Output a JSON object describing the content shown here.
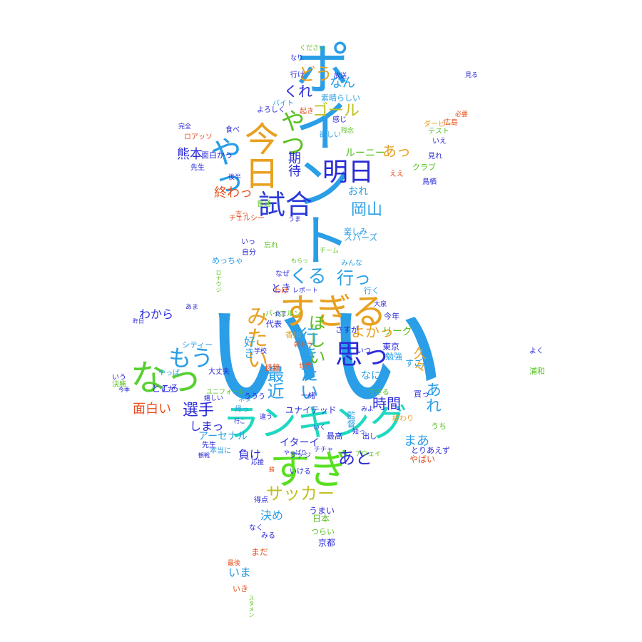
{
  "words": [
    {
      "text": "いい",
      "color": "#2a9ee6"
    },
    {
      "text": "ポイント",
      "color": "#2a9ee6"
    },
    {
      "text": "ランキング",
      "color": "#1fd8c0"
    },
    {
      "text": "すぎる",
      "color": "#e8a020"
    },
    {
      "text": "すぎ",
      "color": "#58e020"
    },
    {
      "text": "なっ",
      "color": "#58d030"
    },
    {
      "text": "今日",
      "color": "#e8a020"
    },
    {
      "text": "思っ",
      "color": "#2a2ad8"
    },
    {
      "text": "やっ",
      "color": "#2a9ee6"
    },
    {
      "text": "試合",
      "color": "#2a3ad8"
    },
    {
      "text": "明日",
      "color": "#2a2ad8"
    },
    {
      "text": "みたい",
      "color": "#e8a020"
    },
    {
      "text": "もう",
      "color": "#2a9ee6"
    },
    {
      "text": "やつ",
      "color": "#58c020"
    },
    {
      "text": "ゴール",
      "color": "#c0c020"
    },
    {
      "text": "行きたい",
      "color": "#2a9ee6"
    },
    {
      "text": "ほしい",
      "color": "#58c020"
    },
    {
      "text": "最近",
      "color": "#2a9ee6"
    },
    {
      "text": "期待",
      "color": "#2a2ad8"
    },
    {
      "text": "くる",
      "color": "#2a9ee6"
    },
    {
      "text": "行っ",
      "color": "#2a9ee6"
    },
    {
      "text": "どう",
      "color": "#e8a020"
    },
    {
      "text": "くれ",
      "color": "#2a2ad8"
    },
    {
      "text": "なん",
      "color": "#2a9ee6"
    },
    {
      "text": "あっ",
      "color": "#e8a020"
    },
    {
      "text": "岡山",
      "color": "#2a9ee6"
    },
    {
      "text": "熊本",
      "color": "#2a2ad8"
    },
    {
      "text": "終わっ",
      "color": "#e85020"
    },
    {
      "text": "選手",
      "color": "#2a2ad8"
    },
    {
      "text": "面白い",
      "color": "#e85020"
    },
    {
      "text": "時間",
      "color": "#2a2ad8"
    },
    {
      "text": "あれ",
      "color": "#2a9ee6"
    },
    {
      "text": "まあ",
      "color": "#2a9ee6"
    },
    {
      "text": "あと",
      "color": "#2a2ad8"
    },
    {
      "text": "久々",
      "color": "#e8a020"
    },
    {
      "text": "よかっ",
      "color": "#e8a020"
    },
    {
      "text": "サッカー",
      "color": "#c0c020"
    },
    {
      "text": "しまっ",
      "color": "#2a2ad8"
    },
    {
      "text": "わから",
      "color": "#2a2ad8"
    },
    {
      "text": "負け",
      "color": "#2a2ad8"
    },
    {
      "text": "決め",
      "color": "#2a9ee6"
    },
    {
      "text": "いま",
      "color": "#2a9ee6"
    },
    {
      "text": "ところ",
      "color": "#2a2ad8"
    },
    {
      "text": "なに",
      "color": "#2a9ee6"
    },
    {
      "text": "好き",
      "color": "#2a9ee6"
    },
    {
      "text": "とき",
      "color": "#2a2ad8"
    },
    {
      "text": "おれ",
      "color": "#2a9ee6"
    },
    {
      "text": "ルーニー",
      "color": "#58c020"
    },
    {
      "text": "アーセナル",
      "color": "#2a9ee6"
    },
    {
      "text": "イターイ",
      "color": "#2a2ad8"
    },
    {
      "text": "リーグ",
      "color": "#58c020"
    },
    {
      "text": "東京",
      "color": "#2a2ad8"
    },
    {
      "text": "勉強",
      "color": "#2a9ee6"
    },
    {
      "text": "すごい",
      "color": "#2a9ee6"
    },
    {
      "text": "よく",
      "color": "#2a2ad8"
    },
    {
      "text": "浦和",
      "color": "#58c020"
    },
    {
      "text": "買っ",
      "color": "#2a2ad8"
    },
    {
      "text": "うち",
      "color": "#58c020"
    },
    {
      "text": "日本",
      "color": "#58c020"
    },
    {
      "text": "京都",
      "color": "#2a2ad8"
    },
    {
      "text": "うまい",
      "color": "#2a2ad8"
    },
    {
      "text": "つらい",
      "color": "#58c020"
    },
    {
      "text": "まだ",
      "color": "#e85020"
    },
    {
      "text": "いき",
      "color": "#e85020"
    },
    {
      "text": "みる",
      "color": "#2a2ad8"
    },
    {
      "text": "やばい",
      "color": "#e85020"
    },
    {
      "text": "とりあえず",
      "color": "#2a2ad8"
    },
    {
      "text": "最高",
      "color": "#2a2ad8"
    },
    {
      "text": "監督",
      "color": "#2a9ee6"
    },
    {
      "text": "ユナイテッド",
      "color": "#2a2ad8"
    },
    {
      "text": "できる",
      "color": "#58c020"
    },
    {
      "text": "香川",
      "color": "#e8a020"
    },
    {
      "text": "代表",
      "color": "#2a2ad8"
    },
    {
      "text": "さすが",
      "color": "#2a2ad8"
    },
    {
      "text": "シティー",
      "color": "#2a9ee6"
    },
    {
      "text": "移籍",
      "color": "#e85020"
    },
    {
      "text": "今年",
      "color": "#2a2ad8"
    },
    {
      "text": "大泉",
      "color": "#2a2ad8"
    },
    {
      "text": "行く",
      "color": "#2a9ee6"
    },
    {
      "text": "なぜ",
      "color": "#2a2ad8"
    },
    {
      "text": "自分",
      "color": "#2a2ad8"
    },
    {
      "text": "めっちゃ",
      "color": "#2a9ee6"
    },
    {
      "text": "いっ",
      "color": "#2a2ad8"
    },
    {
      "text": "忘れ",
      "color": "#58c020"
    },
    {
      "text": "チェルシー",
      "color": "#e85020"
    },
    {
      "text": "楽しみ",
      "color": "#2a9ee6"
    },
    {
      "text": "スパーズ",
      "color": "#2a9ee6"
    },
    {
      "text": "チーム",
      "color": "#58c020"
    },
    {
      "text": "みんな",
      "color": "#2a9ee6"
    },
    {
      "text": "もらっ",
      "color": "#58c020"
    },
    {
      "text": "普通",
      "color": "#58c020"
    },
    {
      "text": "ええ",
      "color": "#e85020"
    },
    {
      "text": "鳥栖",
      "color": "#2a2ad8"
    },
    {
      "text": "クラブ",
      "color": "#58c020"
    },
    {
      "text": "見れ",
      "color": "#2a2ad8"
    },
    {
      "text": "いえ",
      "color": "#2a2ad8"
    },
    {
      "text": "テスト",
      "color": "#58c020"
    },
    {
      "text": "広島",
      "color": "#e85020"
    },
    {
      "text": "必要",
      "color": "#e85020"
    },
    {
      "text": "ダービー",
      "color": "#e8a020"
    },
    {
      "text": "残念",
      "color": "#58c020"
    },
    {
      "text": "欲しい",
      "color": "#2a9ee6"
    },
    {
      "text": "感じ",
      "color": "#2a2ad8"
    },
    {
      "text": "素晴らしい",
      "color": "#2a9ee6"
    },
    {
      "text": "バイト",
      "color": "#2a9ee6"
    },
    {
      "text": "よろしく",
      "color": "#2a2ad8"
    },
    {
      "text": "起き",
      "color": "#e85020"
    },
    {
      "text": "放送",
      "color": "#2a2ad8"
    },
    {
      "text": "行け",
      "color": "#2a2ad8"
    },
    {
      "text": "なり",
      "color": "#2a2ad8"
    },
    {
      "text": "ください",
      "color": "#58c020"
    },
    {
      "text": "見る",
      "color": "#2a2ad8"
    },
    {
      "text": "ロアッソ",
      "color": "#e85020"
    },
    {
      "text": "完全",
      "color": "#2a2ad8"
    },
    {
      "text": "食べ",
      "color": "#2a2ad8"
    },
    {
      "text": "面白かっ",
      "color": "#2a2ad8"
    },
    {
      "text": "先生",
      "color": "#2a2ad8"
    },
    {
      "text": "後半",
      "color": "#2a2ad8"
    },
    {
      "text": "言っ",
      "color": "#e85020"
    },
    {
      "text": "うま",
      "color": "#2a2ad8"
    },
    {
      "text": "あま",
      "color": "#2a2ad8"
    },
    {
      "text": "いう",
      "color": "#2a2ad8"
    },
    {
      "text": "決勝",
      "color": "#58c020"
    },
    {
      "text": "今季",
      "color": "#2a2ad8"
    },
    {
      "text": "すか",
      "color": "#2a2ad8"
    },
    {
      "text": "嬉しい",
      "color": "#2a2ad8"
    },
    {
      "text": "先生",
      "color": "#2a2ad8"
    },
    {
      "text": "本当に",
      "color": "#2a9ee6"
    },
    {
      "text": "応援",
      "color": "#2a2ad8"
    },
    {
      "text": "勝",
      "color": "#e85020"
    },
    {
      "text": "帰っ",
      "color": "#2a9ee6"
    },
    {
      "text": "行こ",
      "color": "#2a2ad8"
    },
    {
      "text": "得点",
      "color": "#2a2ad8"
    },
    {
      "text": "チチャ",
      "color": "#2a2ad8"
    },
    {
      "text": "ファジ",
      "color": "#2a2ad8"
    },
    {
      "text": "やっぱり",
      "color": "#2a2ad8"
    },
    {
      "text": "いける",
      "color": "#2a2ad8"
    },
    {
      "text": "いく",
      "color": "#2a2ad8"
    },
    {
      "text": "知っ",
      "color": "#2a2ad8"
    },
    {
      "text": "出し",
      "color": "#2a2ad8"
    },
    {
      "text": "終わり",
      "color": "#e8a020"
    },
    {
      "text": "みよ",
      "color": "#2a2ad8"
    },
    {
      "text": "一緒",
      "color": "#2a2ad8"
    },
    {
      "text": "朝ドラ",
      "color": "#e85020"
    },
    {
      "text": "学校",
      "color": "#2a2ad8"
    },
    {
      "text": "世界",
      "color": "#e85020"
    },
    {
      "text": "いつ",
      "color": "#2a2ad8"
    },
    {
      "text": "やっぱ",
      "color": "#2a9ee6"
    },
    {
      "text": "ユニフォーム",
      "color": "#58c020"
    },
    {
      "text": "大丈夫",
      "color": "#2a2ad8"
    },
    {
      "text": "ネタ",
      "color": "#2a9ee6"
    },
    {
      "text": "ううう",
      "color": "#2a2ad8"
    },
    {
      "text": "違う",
      "color": "#2a2ad8"
    },
    {
      "text": "レポート",
      "color": "#2a2ad8"
    },
    {
      "text": "バイエルン",
      "color": "#58c020"
    },
    {
      "text": "終了",
      "color": "#2a2ad8"
    },
    {
      "text": "わけ",
      "color": "#e85020"
    },
    {
      "text": "なく",
      "color": "#2a2ad8"
    },
    {
      "text": "最後",
      "color": "#e85020"
    },
    {
      "text": "スタメン",
      "color": "#58c020"
    },
    {
      "text": "ロナウジ",
      "color": "#58c020"
    },
    {
      "text": "昨日",
      "color": "#2a2ad8"
    },
    {
      "text": "観戦",
      "color": "#2a2ad8"
    },
    {
      "text": "アウェイ",
      "color": "#58c020"
    },
    {
      "text": "できる",
      "color": "#58c020"
    }
  ]
}
